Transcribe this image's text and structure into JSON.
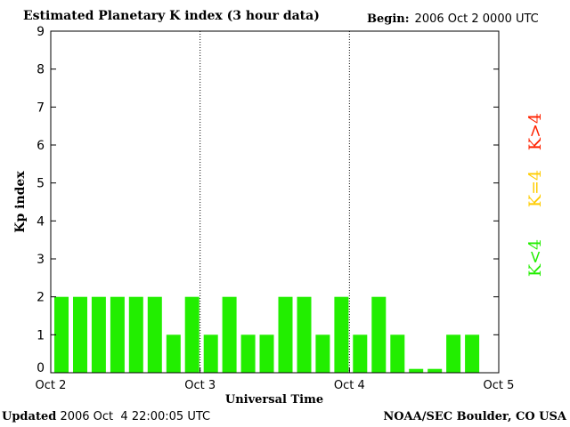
{
  "header": {
    "title": "Estimated Planetary K index (3 hour data)",
    "begin_label": "Begin:",
    "begin_value": "2006 Oct 2 0000 UTC"
  },
  "footer": {
    "updated_label": "Updated",
    "updated_value": "2006 Oct  4 22:00:05 UTC",
    "credit": "NOAA/SEC Boulder, CO USA"
  },
  "legend": [
    {
      "text": "K>4",
      "color": "#ff2200"
    },
    {
      "text": "K=4",
      "color": "#ffcc00"
    },
    {
      "text": "K<4",
      "color": "#22ee00"
    }
  ],
  "chart_data": {
    "type": "bar",
    "title": "Estimated Planetary K index (3 hour data)",
    "xlabel": "Universal Time",
    "ylabel": "Kp index",
    "ylim": [
      0,
      9
    ],
    "yticks": [
      0,
      1,
      2,
      3,
      4,
      5,
      6,
      7,
      8,
      9
    ],
    "xticks": [
      "Oct 2",
      "Oct 3",
      "Oct 4",
      "Oct 5"
    ],
    "day_dividers": [
      "Oct 3",
      "Oct 4"
    ],
    "bar_color": "#22ee00",
    "values": [
      2,
      2,
      2,
      2,
      2,
      2,
      1,
      2,
      1,
      2,
      1,
      1,
      2,
      2,
      1,
      2,
      1,
      2,
      1,
      0.1,
      0.1,
      1,
      1
    ]
  }
}
